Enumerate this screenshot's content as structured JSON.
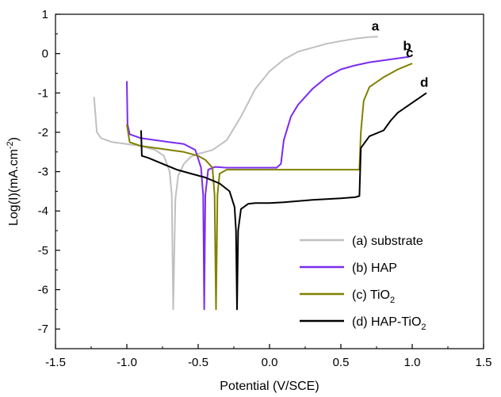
{
  "chart_data": {
    "type": "line",
    "xlabel": "Potential (V/SCE)",
    "ylabel_parts": [
      "Log(I)(mA.cm",
      "-2",
      ")"
    ],
    "xlim": [
      -1.5,
      1.5
    ],
    "ylim": [
      -7.5,
      1
    ],
    "x_ticks": [
      "-1.5",
      "-1.0",
      "-0.5",
      "0.0",
      "0.5",
      "1.0",
      "1.5"
    ],
    "y_ticks": [
      "1",
      "0",
      "-1",
      "-2",
      "-3",
      "-4",
      "-5",
      "-6",
      "-7"
    ],
    "legend_position": "bottom-right",
    "grid": false,
    "series": [
      {
        "name": "(a) substrate",
        "tag": "a",
        "color": "#c0c0c0",
        "points": [
          [
            -1.23,
            -1.1
          ],
          [
            -1.21,
            -2.0
          ],
          [
            -1.18,
            -2.15
          ],
          [
            -1.1,
            -2.25
          ],
          [
            -1.0,
            -2.3
          ],
          [
            -0.9,
            -2.35
          ],
          [
            -0.8,
            -2.45
          ],
          [
            -0.74,
            -2.6
          ],
          [
            -0.7,
            -3.0
          ],
          [
            -0.685,
            -3.6
          ],
          [
            -0.675,
            -6.5
          ],
          [
            -0.66,
            -3.7
          ],
          [
            -0.64,
            -3.1
          ],
          [
            -0.6,
            -2.8
          ],
          [
            -0.55,
            -2.62
          ],
          [
            -0.5,
            -2.55
          ],
          [
            -0.4,
            -2.45
          ],
          [
            -0.3,
            -2.2
          ],
          [
            -0.2,
            -1.6
          ],
          [
            -0.1,
            -0.9
          ],
          [
            0.0,
            -0.45
          ],
          [
            0.1,
            -0.15
          ],
          [
            0.2,
            0.05
          ],
          [
            0.3,
            0.15
          ],
          [
            0.4,
            0.25
          ],
          [
            0.5,
            0.32
          ],
          [
            0.6,
            0.38
          ],
          [
            0.7,
            0.42
          ],
          [
            0.76,
            0.43
          ]
        ]
      },
      {
        "name": "(b) HAP",
        "tag": "b",
        "color": "#7a2cf0",
        "points": [
          [
            -1.0,
            -0.7
          ],
          [
            -0.995,
            -1.8
          ],
          [
            -0.98,
            -2.05
          ],
          [
            -0.9,
            -2.15
          ],
          [
            -0.8,
            -2.2
          ],
          [
            -0.7,
            -2.25
          ],
          [
            -0.6,
            -2.3
          ],
          [
            -0.52,
            -2.45
          ],
          [
            -0.48,
            -2.9
          ],
          [
            -0.465,
            -3.6
          ],
          [
            -0.458,
            -6.5
          ],
          [
            -0.45,
            -3.6
          ],
          [
            -0.43,
            -2.95
          ],
          [
            -0.38,
            -2.88
          ],
          [
            -0.3,
            -2.9
          ],
          [
            -0.2,
            -2.9
          ],
          [
            -0.1,
            -2.9
          ],
          [
            0.0,
            -2.9
          ],
          [
            0.05,
            -2.9
          ],
          [
            0.08,
            -2.8
          ],
          [
            0.1,
            -2.2
          ],
          [
            0.15,
            -1.6
          ],
          [
            0.2,
            -1.3
          ],
          [
            0.3,
            -0.9
          ],
          [
            0.4,
            -0.6
          ],
          [
            0.5,
            -0.4
          ],
          [
            0.6,
            -0.3
          ],
          [
            0.7,
            -0.22
          ],
          [
            0.8,
            -0.17
          ],
          [
            0.9,
            -0.12
          ],
          [
            0.98,
            -0.08
          ]
        ]
      },
      {
        "name": "(c) TiO2",
        "tag": "c",
        "color": "#808000",
        "points": [
          [
            -1.0,
            -1.8
          ],
          [
            -0.98,
            -2.25
          ],
          [
            -0.9,
            -2.35
          ],
          [
            -0.8,
            -2.4
          ],
          [
            -0.7,
            -2.45
          ],
          [
            -0.6,
            -2.5
          ],
          [
            -0.55,
            -2.55
          ],
          [
            -0.5,
            -2.6
          ],
          [
            -0.45,
            -2.7
          ],
          [
            -0.4,
            -2.9
          ],
          [
            -0.385,
            -3.6
          ],
          [
            -0.375,
            -6.5
          ],
          [
            -0.365,
            -3.6
          ],
          [
            -0.35,
            -3.05
          ],
          [
            -0.3,
            -2.95
          ],
          [
            -0.2,
            -2.95
          ],
          [
            -0.1,
            -2.95
          ],
          [
            0.0,
            -2.95
          ],
          [
            0.1,
            -2.95
          ],
          [
            0.2,
            -2.95
          ],
          [
            0.3,
            -2.95
          ],
          [
            0.4,
            -2.95
          ],
          [
            0.5,
            -2.95
          ],
          [
            0.6,
            -2.95
          ],
          [
            0.63,
            -2.95
          ],
          [
            0.64,
            -2.0
          ],
          [
            0.66,
            -1.2
          ],
          [
            0.7,
            -0.85
          ],
          [
            0.8,
            -0.6
          ],
          [
            0.9,
            -0.4
          ],
          [
            1.0,
            -0.25
          ]
        ]
      },
      {
        "name": "(d) HAP-TiO2",
        "tag": "d",
        "color": "#000000",
        "points": [
          [
            -0.9,
            -1.95
          ],
          [
            -0.895,
            -2.6
          ],
          [
            -0.85,
            -2.65
          ],
          [
            -0.75,
            -2.8
          ],
          [
            -0.65,
            -2.95
          ],
          [
            -0.55,
            -3.05
          ],
          [
            -0.45,
            -3.15
          ],
          [
            -0.35,
            -3.3
          ],
          [
            -0.28,
            -3.5
          ],
          [
            -0.245,
            -3.9
          ],
          [
            -0.235,
            -4.5
          ],
          [
            -0.228,
            -6.5
          ],
          [
            -0.22,
            -4.5
          ],
          [
            -0.2,
            -3.95
          ],
          [
            -0.15,
            -3.82
          ],
          [
            -0.1,
            -3.8
          ],
          [
            0.0,
            -3.8
          ],
          [
            0.1,
            -3.78
          ],
          [
            0.2,
            -3.75
          ],
          [
            0.3,
            -3.72
          ],
          [
            0.4,
            -3.7
          ],
          [
            0.5,
            -3.68
          ],
          [
            0.6,
            -3.65
          ],
          [
            0.63,
            -3.62
          ],
          [
            0.64,
            -2.4
          ],
          [
            0.7,
            -2.1
          ],
          [
            0.8,
            -1.95
          ],
          [
            0.85,
            -1.7
          ],
          [
            0.9,
            -1.5
          ],
          [
            1.0,
            -1.25
          ],
          [
            1.1,
            -1.0
          ]
        ]
      }
    ]
  }
}
